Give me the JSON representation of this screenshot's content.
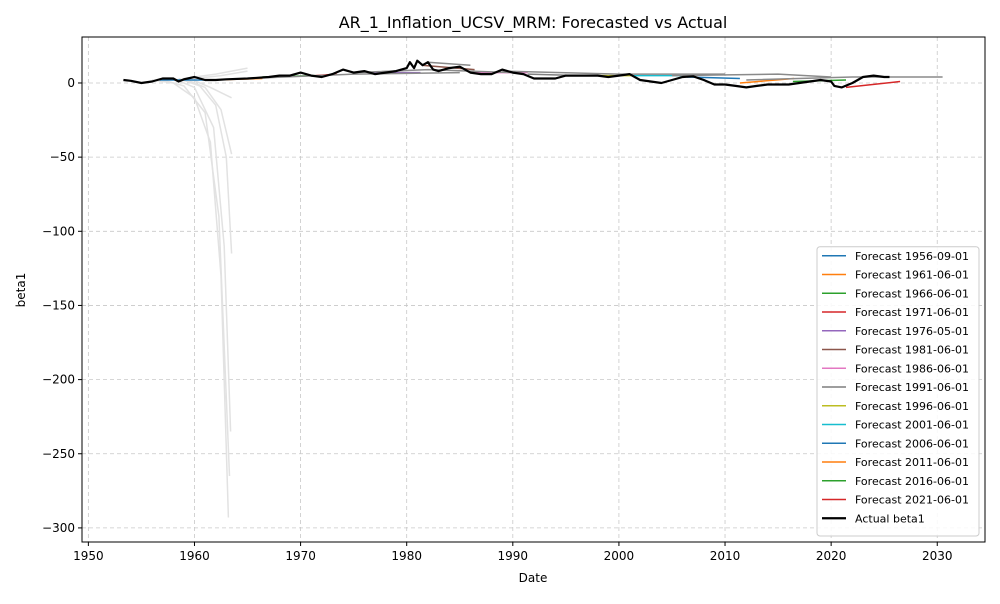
{
  "chart_data": {
    "type": "line",
    "title": "AR_1_Inflation_UCSV_MRM: Forecasted vs Actual",
    "x_label": "Date",
    "y_label": "beta1",
    "xlim": [
      1949.4,
      2034.5
    ],
    "ylim": [
      -309.5,
      31
    ],
    "xticks": [
      1950,
      1960,
      1970,
      1980,
      1990,
      2000,
      2010,
      2020,
      2030
    ],
    "yticks": [
      {
        "value": -300,
        "label": "−300"
      },
      {
        "value": -250,
        "label": "−250"
      },
      {
        "value": -200,
        "label": "−200"
      },
      {
        "value": -150,
        "label": "−150"
      },
      {
        "value": -100,
        "label": "−100"
      },
      {
        "value": -50,
        "label": "−50"
      },
      0
    ],
    "grid": true,
    "legend": "lower right",
    "series": [
      {
        "color": "#e2e2e2",
        "x": [
          1956,
          1958,
          1960,
          1961.5,
          1962.5,
          1963.2
        ],
        "values": [
          2,
          0,
          -10,
          -40,
          -130,
          -293
        ]
      },
      {
        "color": "#e2e2e2",
        "x": [
          1957,
          1959,
          1961,
          1962.3,
          1963.3
        ],
        "values": [
          2,
          -2,
          -20,
          -90,
          -265
        ]
      },
      {
        "color": "#e2e2e2",
        "x": [
          1958,
          1960,
          1961.8,
          1962.8,
          1963.4
        ],
        "values": [
          3,
          -3,
          -30,
          -110,
          -235
        ]
      },
      {
        "color": "#e2e2e2",
        "x": [
          1958.5,
          1960.5,
          1962,
          1963,
          1963.5
        ],
        "values": [
          3,
          -2,
          -15,
          -50,
          -115
        ]
      },
      {
        "color": "#e2e2e2",
        "x": [
          1959,
          1961,
          1962.5,
          1963.5
        ],
        "values": [
          3,
          -3,
          -18,
          -48
        ]
      },
      {
        "color": "#e2e2e2",
        "x": [
          1959.5,
          1961.5,
          1963.5
        ],
        "values": [
          3,
          -3,
          -10
        ]
      },
      {
        "color": "#e2e2e2",
        "x": [
          1959,
          1962,
          1965
        ],
        "values": [
          3,
          6,
          10
        ]
      },
      {
        "color": "#e2e2e2",
        "x": [
          1960,
          1962.5,
          1965
        ],
        "values": [
          3,
          5,
          8
        ]
      },
      {
        "name": "Forecast 1956-09-01",
        "color": "#1f77b4",
        "x": [
          1956.7,
          1961.7
        ],
        "values": [
          2,
          2
        ]
      },
      {
        "name": "Forecast 1961-06-01",
        "color": "#ff7f0e",
        "x": [
          1961.4,
          1966.4
        ],
        "values": [
          2,
          3
        ]
      },
      {
        "name": "Forecast 1966-06-01",
        "color": "#2ca02c",
        "x": [
          1966.4,
          1971.4
        ],
        "values": [
          4,
          5
        ]
      },
      {
        "name": "Forecast 1971-06-01",
        "color": "#d62728",
        "x": [
          1971.4,
          1973.4
        ],
        "values": [
          5,
          6
        ]
      },
      {
        "name": "Forecast 1976-05-01",
        "color": "#9467bd",
        "x": [
          1976.3,
          1981.3
        ],
        "values": [
          7,
          7
        ]
      },
      {
        "name": "Forecast 1981-06-01",
        "color": "#8c564b",
        "x": [
          1981.4,
          1986.4
        ],
        "values": [
          12,
          9
        ]
      },
      {
        "name": "Forecast 1986-06-01",
        "color": "#e377c2",
        "x": [
          1986.4,
          1991.4
        ],
        "values": [
          7,
          7
        ]
      },
      {
        "name": "Forecast 1991-06-01",
        "color": "#7f7f7f",
        "x": [
          1991.4,
          1996.4
        ],
        "values": [
          6,
          5
        ]
      },
      {
        "name": "Forecast 1996-06-01",
        "color": "#bcbd22",
        "x": [
          1996.4,
          2001.4
        ],
        "values": [
          5,
          5
        ]
      },
      {
        "name": "Forecast 2001-06-01",
        "color": "#17becf",
        "x": [
          2001.4,
          2006.4
        ],
        "values": [
          5,
          5
        ]
      },
      {
        "name": "Forecast 2006-06-01",
        "color": "#1f77b4",
        "x": [
          2006.4,
          2011.4
        ],
        "values": [
          4,
          3
        ]
      },
      {
        "name": "Forecast 2011-06-01",
        "color": "#ff7f0e",
        "x": [
          2011.4,
          2016.5
        ],
        "values": [
          0,
          3
        ]
      },
      {
        "name": "Forecast 2016-06-01",
        "color": "#2ca02c",
        "x": [
          2016.4,
          2021.4
        ],
        "values": [
          1,
          2
        ]
      },
      {
        "name": "Forecast 2021-06-01",
        "color": "#d62728",
        "x": [
          2021.4,
          2026.5
        ],
        "values": [
          -3,
          1
        ]
      },
      {
        "color": "#8a8a8a",
        "x": [
          1965,
          1975,
          1985
        ],
        "values": [
          3,
          6,
          7
        ]
      },
      {
        "color": "#8a8a8a",
        "x": [
          1975,
          1982,
          1990
        ],
        "values": [
          7,
          9,
          7
        ]
      },
      {
        "color": "#8a8a8a",
        "x": [
          1982,
          1986
        ],
        "values": [
          14,
          12
        ]
      },
      {
        "color": "#8a8a8a",
        "x": [
          1989,
          2000,
          2010
        ],
        "values": [
          8,
          6,
          6
        ]
      },
      {
        "color": "#8a8a8a",
        "x": [
          2005,
          2015,
          2020
        ],
        "values": [
          5,
          6,
          4
        ]
      },
      {
        "color": "#8a8a8a",
        "x": [
          2012,
          2022,
          2030.5
        ],
        "values": [
          2,
          4,
          4
        ]
      },
      {
        "name": "Actual beta1",
        "color": "#000000",
        "width": 2.2,
        "x": [
          1953.3,
          1954,
          1955,
          1956,
          1957,
          1958,
          1958.5,
          1959,
          1960,
          1961,
          1962,
          1963,
          1965,
          1967,
          1968,
          1969,
          1970,
          1971,
          1972,
          1973,
          1974,
          1975,
          1976,
          1977,
          1978,
          1979,
          1980,
          1980.3,
          1980.7,
          1981,
          1981.5,
          1982,
          1982.5,
          1983,
          1984,
          1985,
          1986,
          1987,
          1988,
          1989,
          1990,
          1991,
          1992,
          1993,
          1994,
          1995,
          1996,
          1998,
          1999,
          2000,
          2001,
          2002,
          2003,
          2004,
          2005,
          2006,
          2007,
          2008,
          2009,
          2010,
          2011,
          2012,
          2013,
          2014,
          2016,
          2017,
          2018,
          2019,
          2020,
          2020.3,
          2021,
          2022,
          2023,
          2024,
          2025,
          2025.5
        ],
        "values": [
          2,
          1.5,
          0,
          1,
          3,
          3,
          1,
          2.5,
          4,
          2,
          2,
          2.5,
          3,
          4,
          5,
          5,
          7,
          5,
          4,
          6,
          9,
          7,
          8,
          6,
          7,
          8,
          10,
          14,
          10,
          15,
          12,
          14,
          9,
          8,
          10,
          11,
          7,
          6,
          6,
          9,
          7,
          6,
          3,
          3,
          3,
          5,
          5,
          5,
          4,
          5,
          6,
          2,
          1,
          0,
          2,
          4,
          4.5,
          2,
          -1,
          -1,
          -2,
          -3,
          -2,
          -1,
          -1,
          0,
          1,
          2,
          1,
          -2,
          -3,
          0,
          4,
          5,
          4,
          4
        ]
      }
    ]
  }
}
